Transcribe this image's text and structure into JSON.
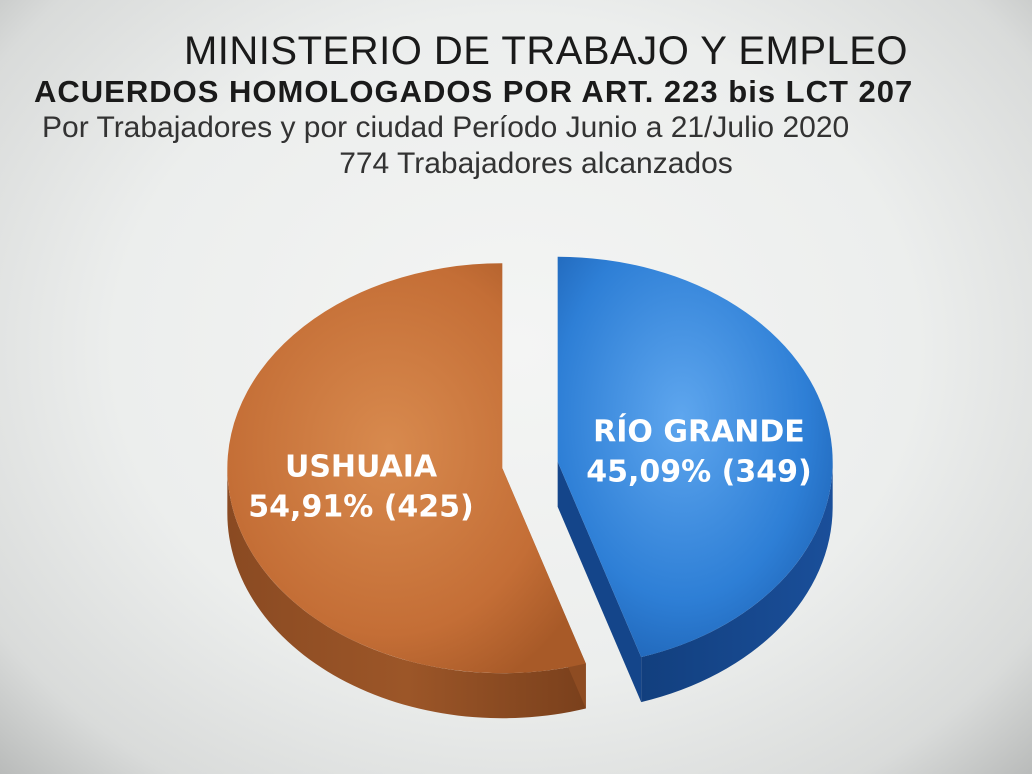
{
  "title": {
    "line1": "MINISTERIO DE TRABAJO Y EMPLEO",
    "line2": "ACUERDOS HOMOLOGADOS POR ART. 223 bis LCT 207",
    "line3": "Por Trabajadores  y por ciudad Período  Junio a 21/Julio 2020",
    "line4": "774 Trabajadores  alcanzados"
  },
  "chart_data": {
    "type": "pie",
    "style": "3d-exploded",
    "slices": [
      {
        "name": "USHUAIA",
        "value": 425,
        "percent": "54,91%",
        "label_value": "54,91% (425)",
        "color": "#c8743c"
      },
      {
        "name": "RÍO GRANDE",
        "value": 349,
        "percent": "45,09%",
        "label_value": "45,09% (349)",
        "color": "#2e78d0"
      }
    ],
    "total": 774
  }
}
